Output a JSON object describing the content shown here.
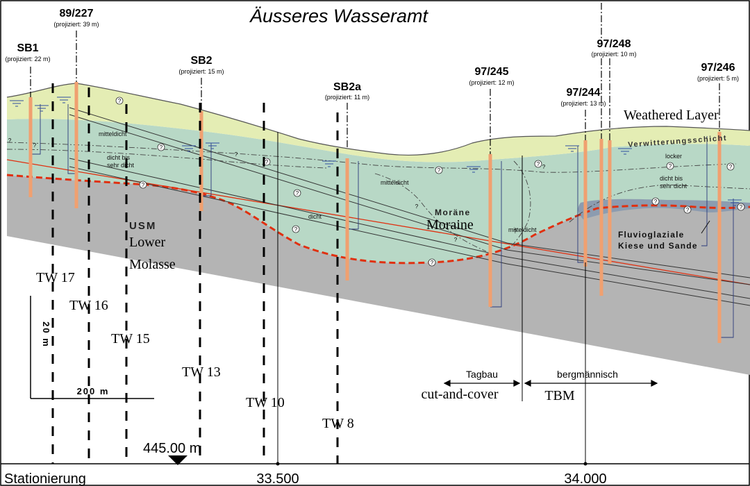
{
  "title": "Äusseres Wasseramt",
  "elevation_label": "445.00 m",
  "station_axis": {
    "label": "Stationierung",
    "ticks": [
      "33.500",
      "34.000"
    ]
  },
  "scale": {
    "vertical": "20 m",
    "horizontal": "200 m"
  },
  "boreholes": [
    {
      "name": "SB1",
      "note": "(projiziert: 22 m)"
    },
    {
      "name": "89/227",
      "note": "(projiziert: 39 m)"
    },
    {
      "name": "SB2",
      "note": "(projiziert: 15 m)"
    },
    {
      "name": "SB2a",
      "note": "(projiziert: 11 m)"
    },
    {
      "name": "97/245",
      "note": "(projiziert: 12 m)"
    },
    {
      "name": "97/244",
      "note": "(projiziert: 13 m)"
    },
    {
      "name": "97/248",
      "note": "(projiziert: 10 m)"
    },
    {
      "name": "97/246",
      "note": "(projiziert: 5 m)"
    }
  ],
  "units": {
    "usm": "USM",
    "usm_en_1": "Lower",
    "usm_en_2": "Molasse",
    "moraine_de": "Moräne",
    "moraine_en": "Moraine",
    "fluvio_1": "Fluvioglaziale",
    "fluvio_2": "Kiese und Sande",
    "weathered_de": "Verwitterungsschicht",
    "weathered_en": "Weathered Layer"
  },
  "density_labels": {
    "mitteldicht_1": "mitteldicht",
    "dichtbis_1a": "dicht bis",
    "dichtbis_1b": "sehr dicht",
    "mitteldicht_2": "mitteldicht",
    "dicht": "dicht",
    "mitteldicht_3": "mitteldicht",
    "locker": "locker",
    "dichtbis_2a": "dicht bis",
    "dichtbis_2b": "sehr dicht"
  },
  "wells": [
    "TW 17",
    "TW 16",
    "TW 15",
    "TW 13",
    "TW 10",
    "TW 8"
  ],
  "construction": {
    "tagbau": "Tagbau",
    "tagbau_en": "cut-and-cover",
    "bergmaennisch": "bergmännisch",
    "bergmaennisch_en": "TBM"
  },
  "colors": {
    "molasse": "#b4b4b4",
    "moraine": "#b8d8c6",
    "weathered": "#e4edb4",
    "fluvio": "#8c9cb0",
    "borehole": "#f0a070",
    "boundary": "#e03010",
    "water": "#3050a0"
  }
}
